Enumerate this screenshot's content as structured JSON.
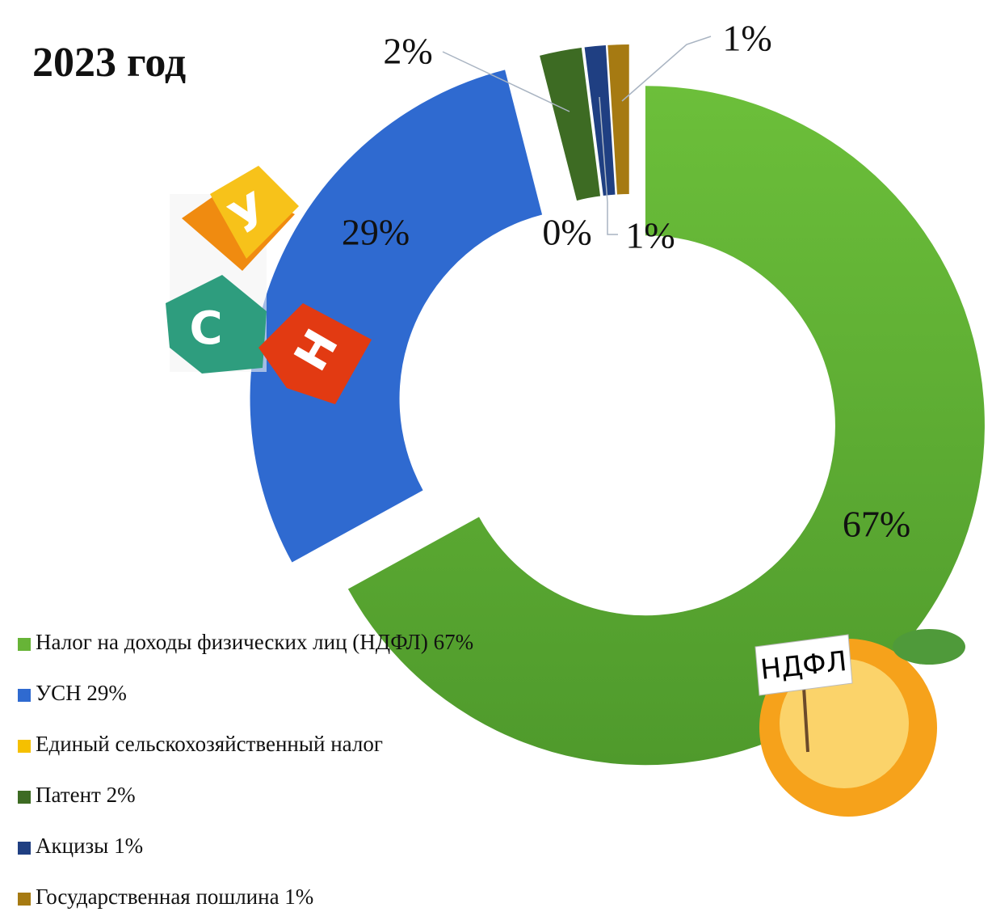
{
  "chart_data": {
    "type": "donut",
    "title": "2023 год",
    "categories": [
      "Налог на доходы физических лиц (НДФЛ) 67%",
      "УСН 29%",
      "Единый сельскохозяйственный налог",
      "Патент 2%",
      "Акцизы 1%",
      "Государственная пошлина 1%"
    ],
    "values": [
      67,
      29,
      0,
      2,
      1,
      1
    ],
    "value_labels": [
      "67%",
      "29%",
      "0%",
      "2%",
      "1%",
      "1%"
    ],
    "colors": [
      "#67b437",
      "#2f6ad0",
      "#f5c000",
      "#3d6b23",
      "#1f3f82",
      "#a67a12"
    ],
    "legend": "bottom-left",
    "annotations": [
      "У",
      "С",
      "Н",
      "НДФЛ"
    ]
  }
}
